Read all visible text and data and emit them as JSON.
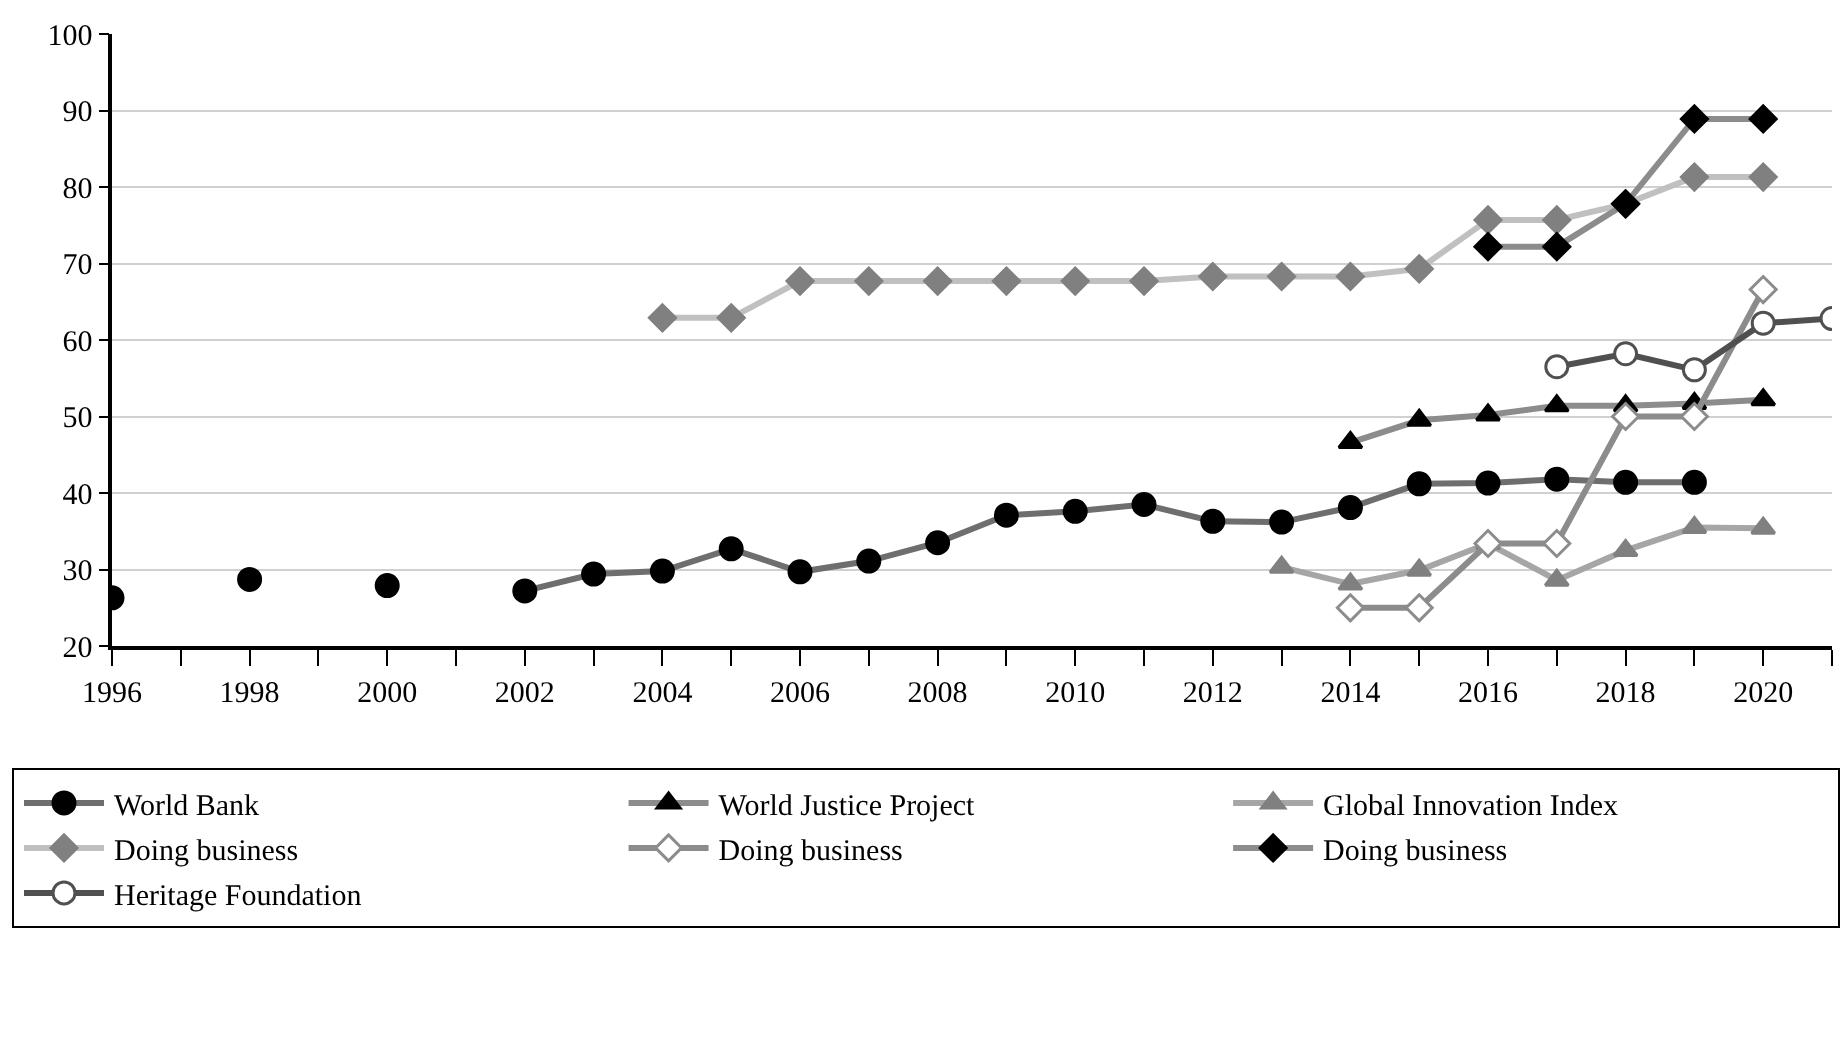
{
  "chart_data": {
    "type": "line",
    "x": [
      1996,
      1997,
      1998,
      1999,
      2000,
      2001,
      2002,
      2003,
      2004,
      2005,
      2006,
      2007,
      2008,
      2009,
      2010,
      2011,
      2012,
      2013,
      2014,
      2015,
      2016,
      2017,
      2018,
      2019,
      2020,
      2021
    ],
    "xlim": [
      1996,
      2021
    ],
    "xticks": [
      1996,
      {
        "value": 1997,
        "label": null
      },
      1998,
      {
        "value": 1999,
        "label": null
      },
      2000,
      {
        "value": 2001,
        "label": null
      },
      2002,
      {
        "value": 2003,
        "label": null
      },
      2004,
      {
        "value": 2005,
        "label": null
      },
      2006,
      {
        "value": 2007,
        "label": null
      },
      2008,
      {
        "value": 2009,
        "label": null
      },
      2010,
      {
        "value": 2011,
        "label": null
      },
      2012,
      {
        "value": 2013,
        "label": null
      },
      2014,
      {
        "value": 2015,
        "label": null
      },
      2016,
      {
        "value": 2017,
        "label": null
      },
      2018,
      {
        "value": 2019,
        "label": null
      },
      2020,
      {
        "value": 2021,
        "label": null
      }
    ],
    "ylim": [
      20,
      100
    ],
    "yticks": [
      20,
      30,
      40,
      50,
      60,
      70,
      80,
      90,
      100
    ],
    "grid": "y",
    "legend": "bottom",
    "line_style": "solid",
    "series": [
      {
        "name": "World Bank",
        "color": "#6e6e6e",
        "marker": "circle",
        "colors": [
          "#000000",
          "#000000",
          "#000000",
          "#000000",
          "#000000",
          "#000000",
          "#000000",
          "#000000",
          "#000000",
          "#000000",
          "#000000",
          "#000000",
          "#000000",
          "#000000",
          "#000000",
          "#000000",
          "#000000",
          "#000000",
          "#000000",
          "#000000",
          "#000000",
          "#000000",
          "#000000",
          "#000000",
          "#000000",
          "#000000"
        ],
        "values": [
          26.3,
          null,
          28.7,
          null,
          27.9,
          null,
          27.2,
          29.4,
          29.8,
          32.7,
          29.7,
          31.1,
          33.5,
          37.1,
          37.6,
          38.5,
          36.3,
          36.2,
          38.1,
          41.2,
          41.3,
          41.8,
          41.4,
          41.4,
          null,
          null
        ]
      },
      {
        "name": "World Justice Project",
        "color": "#8c8c8c",
        "marker": "triangle",
        "colors": [
          "#000000",
          "#000000",
          "#000000",
          "#000000",
          "#000000",
          "#000000",
          "#000000",
          "#000000",
          "#000000",
          "#000000",
          "#000000",
          "#000000",
          "#000000",
          "#000000",
          "#000000",
          "#000000",
          "#000000",
          "#000000",
          "#000000",
          "#000000",
          "#000000",
          "#000000",
          "#000000",
          "#000000",
          "#000000",
          "#000000"
        ],
        "values": [
          null,
          null,
          null,
          null,
          null,
          null,
          null,
          null,
          null,
          null,
          null,
          null,
          null,
          null,
          null,
          null,
          null,
          null,
          46.6,
          49.5,
          50.2,
          51.4,
          51.4,
          51.7,
          52.2,
          null
        ]
      },
      {
        "name": "Global Innovation Index",
        "color": "#a6a6a6",
        "marker": "triangle",
        "colors": [
          "#808080",
          "#808080",
          "#808080",
          "#808080",
          "#808080",
          "#808080",
          "#808080",
          "#808080",
          "#808080",
          "#808080",
          "#808080",
          "#808080",
          "#808080",
          "#808080",
          "#808080",
          "#808080",
          "#808080",
          "#808080",
          "#808080",
          "#808080",
          "#808080",
          "#808080",
          "#808080",
          "#808080",
          "#808080",
          "#808080"
        ],
        "values": [
          null,
          null,
          null,
          null,
          null,
          null,
          null,
          null,
          null,
          null,
          null,
          null,
          null,
          null,
          null,
          null,
          null,
          30.3,
          28.1,
          29.9,
          33.4,
          28.6,
          32.5,
          35.5,
          35.4,
          null
        ]
      },
      {
        "name": "Doing business",
        "color": "#c0c0c0",
        "marker": "diamond",
        "colors": [
          "#808080",
          "#808080",
          "#808080",
          "#808080",
          "#808080",
          "#808080",
          "#808080",
          "#808080",
          "#808080",
          "#808080",
          "#808080",
          "#808080",
          "#808080",
          "#808080",
          "#808080",
          "#808080",
          "#808080",
          "#808080",
          "#808080",
          "#808080",
          "#808080",
          "#808080",
          "#808080",
          "#808080",
          "#808080",
          "#808080"
        ],
        "values": [
          null,
          null,
          null,
          null,
          null,
          null,
          null,
          null,
          62.9,
          62.9,
          67.7,
          67.7,
          67.7,
          67.7,
          67.7,
          67.7,
          68.3,
          68.3,
          68.3,
          69.3,
          75.7,
          75.7,
          77.8,
          81.3,
          81.3,
          null
        ]
      },
      {
        "name": "Doing business",
        "color": "#8c8c8c",
        "marker": "diamond",
        "colors": [
          "#ffffff",
          "#ffffff",
          "#ffffff",
          "#ffffff",
          "#ffffff",
          "#ffffff",
          "#ffffff",
          "#ffffff",
          "#ffffff",
          "#ffffff",
          "#ffffff",
          "#ffffff",
          "#ffffff",
          "#ffffff",
          "#ffffff",
          "#ffffff",
          "#ffffff",
          "#ffffff",
          "#ffffff",
          "#ffffff",
          "#ffffff",
          "#ffffff",
          "#ffffff",
          "#ffffff",
          "#ffffff",
          "#ffffff"
        ],
        "values": [
          null,
          null,
          null,
          null,
          null,
          null,
          null,
          null,
          null,
          null,
          null,
          null,
          null,
          null,
          null,
          null,
          null,
          null,
          25.0,
          25.0,
          33.4,
          33.4,
          50.0,
          50.0,
          66.6,
          null
        ]
      },
      {
        "name": "Doing business",
        "color": "#8c8c8c",
        "marker": "diamond",
        "colors": [
          "#000000",
          "#000000",
          "#000000",
          "#000000",
          "#000000",
          "#000000",
          "#000000",
          "#000000",
          "#000000",
          "#000000",
          "#000000",
          "#000000",
          "#000000",
          "#000000",
          "#000000",
          "#000000",
          "#000000",
          "#000000",
          "#000000",
          "#000000",
          "#000000",
          "#000000",
          "#000000",
          "#000000",
          "#000000",
          "#000000"
        ],
        "values": [
          null,
          null,
          null,
          null,
          null,
          null,
          null,
          null,
          null,
          null,
          null,
          null,
          null,
          null,
          null,
          null,
          null,
          null,
          null,
          null,
          72.2,
          72.2,
          77.8,
          88.9,
          88.9,
          null
        ]
      },
      {
        "name": "Heritage Foundation",
        "color": "#505050",
        "marker": "circle",
        "colors": [
          "#ffffff",
          "#ffffff",
          "#ffffff",
          "#ffffff",
          "#ffffff",
          "#ffffff",
          "#ffffff",
          "#ffffff",
          "#ffffff",
          "#ffffff",
          "#ffffff",
          "#ffffff",
          "#ffffff",
          "#ffffff",
          "#ffffff",
          "#ffffff",
          "#ffffff",
          "#ffffff",
          "#ffffff",
          "#ffffff",
          "#ffffff",
          "#ffffff",
          "#ffffff",
          "#ffffff",
          "#ffffff",
          "#ffffff"
        ],
        "values": [
          null,
          null,
          null,
          null,
          null,
          null,
          null,
          null,
          null,
          null,
          null,
          null,
          null,
          null,
          null,
          null,
          null,
          null,
          null,
          null,
          null,
          56.5,
          58.2,
          56.1,
          62.2,
          62.8
        ]
      }
    ]
  }
}
